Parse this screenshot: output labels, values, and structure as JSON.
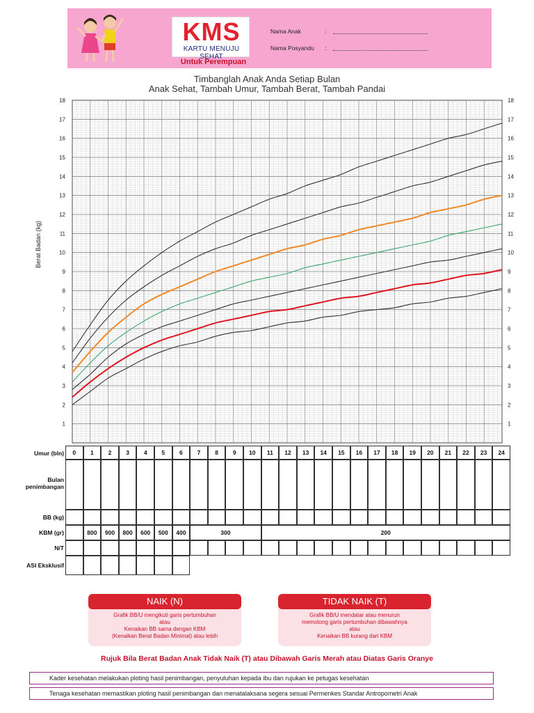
{
  "header": {
    "logo": "KMS",
    "logo_subtitle": "KARTU MENUJU SEHAT",
    "tagline": "Untuk Perempuan",
    "fields": [
      {
        "label": "Nama Anak",
        "colon": ":"
      },
      {
        "label": "Nama Posyandu",
        "colon": ":"
      }
    ]
  },
  "chart_data": {
    "type": "line",
    "title": "Timbanglah Anak Anda Setiap Bulan",
    "subtitle": "Anak Sehat, Tambah Umur, Tambah Berat, Tambah Pandai",
    "ylabel": "Berat Badan (kg)",
    "xlabel": "Umur (bln)",
    "ylim": [
      0,
      18
    ],
    "xlim": [
      0,
      24
    ],
    "yticks": [
      "1",
      "2",
      "3",
      "4",
      "5",
      "6",
      "7",
      "8",
      "9",
      "10",
      "11",
      "12",
      "13",
      "14",
      "15",
      "16",
      "17",
      "18"
    ],
    "x": [
      0,
      1,
      2,
      3,
      4,
      5,
      6,
      7,
      8,
      9,
      10,
      11,
      12,
      13,
      14,
      15,
      16,
      17,
      18,
      19,
      20,
      21,
      22,
      23,
      24
    ],
    "grid": true,
    "series": [
      {
        "color": "#333333",
        "values": [
          4.8,
          6.2,
          7.5,
          8.5,
          9.3,
          10.0,
          10.6,
          11.1,
          11.6,
          12.0,
          12.4,
          12.8,
          13.1,
          13.5,
          13.8,
          14.1,
          14.5,
          14.8,
          15.1,
          15.4,
          15.7,
          16.0,
          16.2,
          16.5,
          16.8
        ]
      },
      {
        "color": "#333333",
        "values": [
          4.2,
          5.5,
          6.6,
          7.5,
          8.2,
          8.8,
          9.3,
          9.8,
          10.2,
          10.5,
          10.9,
          11.2,
          11.5,
          11.8,
          12.1,
          12.4,
          12.6,
          12.9,
          13.2,
          13.5,
          13.7,
          14.0,
          14.3,
          14.6,
          14.8
        ]
      },
      {
        "color": "#f08a24",
        "values": [
          3.7,
          4.8,
          5.8,
          6.6,
          7.3,
          7.8,
          8.2,
          8.6,
          9.0,
          9.3,
          9.6,
          9.9,
          10.2,
          10.4,
          10.7,
          10.9,
          11.2,
          11.4,
          11.6,
          11.8,
          12.1,
          12.3,
          12.5,
          12.8,
          13.0
        ]
      },
      {
        "color": "#3aa66e",
        "values": [
          3.2,
          4.2,
          5.1,
          5.8,
          6.4,
          6.9,
          7.3,
          7.6,
          7.9,
          8.2,
          8.5,
          8.7,
          8.9,
          9.2,
          9.4,
          9.6,
          9.8,
          10.0,
          10.2,
          10.4,
          10.6,
          10.9,
          11.1,
          11.3,
          11.5
        ]
      },
      {
        "color": "#333333",
        "values": [
          2.8,
          3.6,
          4.5,
          5.2,
          5.7,
          6.1,
          6.4,
          6.7,
          7.0,
          7.3,
          7.5,
          7.7,
          7.9,
          8.1,
          8.3,
          8.5,
          8.7,
          8.9,
          9.1,
          9.3,
          9.5,
          9.6,
          9.8,
          10.0,
          10.2
        ]
      },
      {
        "color": "#e0161f",
        "values": [
          2.4,
          3.2,
          3.9,
          4.5,
          5.0,
          5.4,
          5.7,
          6.0,
          6.3,
          6.5,
          6.7,
          6.9,
          7.0,
          7.2,
          7.4,
          7.6,
          7.7,
          7.9,
          8.1,
          8.3,
          8.4,
          8.6,
          8.8,
          8.9,
          9.1
        ]
      },
      {
        "color": "#333333",
        "values": [
          2.0,
          2.7,
          3.4,
          3.9,
          4.4,
          4.8,
          5.1,
          5.3,
          5.6,
          5.8,
          5.9,
          6.1,
          6.3,
          6.4,
          6.6,
          6.7,
          6.9,
          7.0,
          7.1,
          7.3,
          7.4,
          7.6,
          7.7,
          7.9,
          8.1
        ]
      }
    ]
  },
  "table": {
    "row_labels": {
      "umur": "Umur (bln)",
      "bulan_l1": "Bulan",
      "bulan_l2": "penimbangan",
      "bb": "BB (kg)",
      "kbm": "KBM (gr)",
      "nt": "N/T",
      "asi": "ASI Eksklusif"
    },
    "months": [
      "0",
      "1",
      "2",
      "3",
      "4",
      "5",
      "6",
      "7",
      "8",
      "9",
      "10",
      "11",
      "12",
      "13",
      "14",
      "15",
      "16",
      "17",
      "18",
      "19",
      "20",
      "21",
      "22",
      "23",
      "24"
    ],
    "kbm": {
      "m1": "800",
      "m2": "900",
      "m3": "800",
      "m4": "600",
      "m5": "500",
      "m6": "400",
      "m7_10": "300",
      "m11_24": "200"
    }
  },
  "legend": {
    "naik": {
      "title": "NAIK (N)",
      "lines": [
        "Grafik BB/U mengikuti garis pertumbuhan",
        "atau",
        "Kenaikan BB sama dengan KBM",
        "(Kenaikan Berat Badan Minimal) atau lebih"
      ]
    },
    "tidak_naik": {
      "title": "TIDAK NAIK (T)",
      "lines": [
        "Grafik BB/U mendatar atau menurun",
        "memotong garis pertumbuhan dibawahnya",
        "atau",
        "Kenaikan BB kurang dari KBM"
      ]
    }
  },
  "warning": "Rujuk Bila Berat Badan Anak Tidak Naik (T) atau Dibawah Garis Merah atau Diatas Garis Oranye",
  "notes": [
    "Kader kesehatan melakukan ploting hasil penimbangan, penyuluhan kepada ibu dan rujukan ke petugas kesehatan",
    "Tenaga kesehatan memastikan ploting hasil penimbangan dan menatalaksana segera sesuai Permenkes Standar Antropometri Anak"
  ],
  "colors": {
    "header_bg": "#f7a6cf",
    "accent_red": "#d8242f",
    "logo_red": "#e32230",
    "note_border": "#9b2a8a"
  }
}
